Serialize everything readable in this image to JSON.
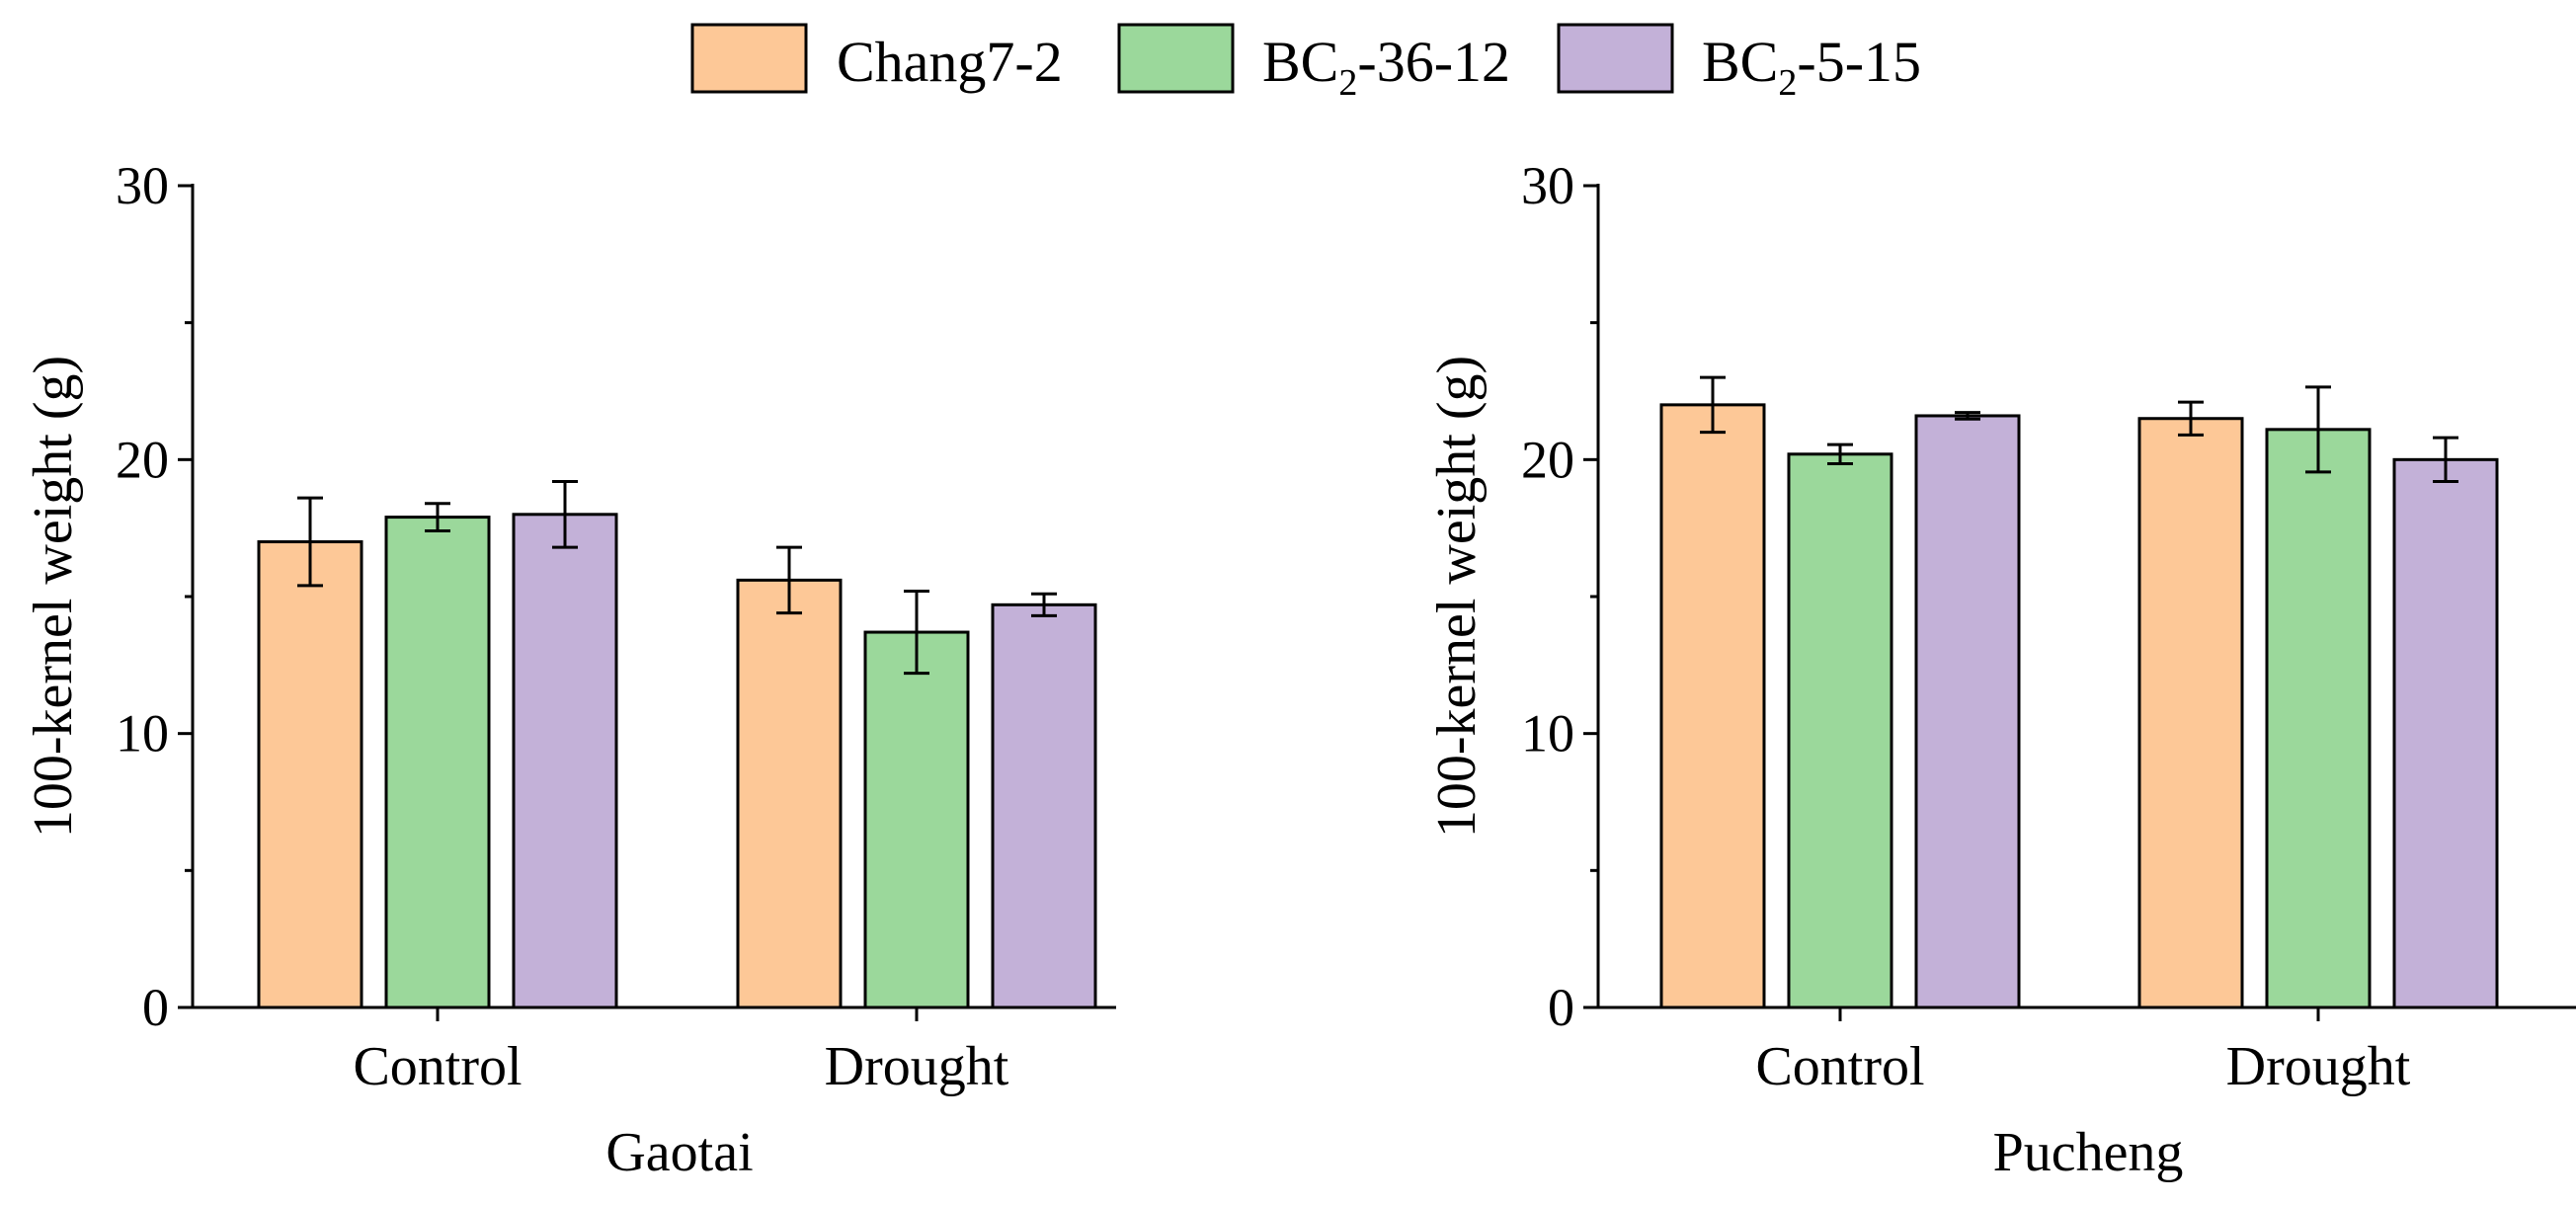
{
  "legend": {
    "items": [
      {
        "series": 0,
        "label": "Chang7-2"
      },
      {
        "series": 1,
        "label": "BC",
        "sub": "2",
        "rest": "-36-12"
      },
      {
        "series": 2,
        "label": "BC",
        "sub": "2",
        "rest": "-5-15"
      }
    ]
  },
  "chart_data": [
    {
      "type": "bar",
      "title": "Gaotai",
      "ylabel": "100-kernel weight (g)",
      "xlabel": "",
      "ylim": [
        0,
        30
      ],
      "yticks": [
        0,
        10,
        20,
        30
      ],
      "categories": [
        "Control",
        "Drought"
      ],
      "series": [
        {
          "name": "Chang7-2",
          "color": "#FDC897",
          "values": [
            17.0,
            15.6
          ],
          "errors": [
            1.6,
            1.2
          ]
        },
        {
          "name": "BC2-36-12",
          "color": "#9BD89B",
          "values": [
            17.9,
            13.7
          ],
          "errors": [
            0.5,
            1.5
          ]
        },
        {
          "name": "BC2-5-15",
          "color": "#C3B1D8",
          "values": [
            18.0,
            14.7
          ],
          "errors": [
            1.2,
            0.4
          ]
        }
      ]
    },
    {
      "type": "bar",
      "title": "Pucheng",
      "ylabel": "100-kernel weight (g)",
      "xlabel": "",
      "ylim": [
        0,
        30
      ],
      "yticks": [
        0,
        10,
        20,
        30
      ],
      "categories": [
        "Control",
        "Drought"
      ],
      "series": [
        {
          "name": "Chang7-2",
          "color": "#FDC897",
          "values": [
            22.0,
            21.5
          ],
          "errors": [
            1.0,
            0.6
          ]
        },
        {
          "name": "BC2-36-12",
          "color": "#9BD89B",
          "values": [
            20.2,
            21.1
          ],
          "errors": [
            0.35,
            1.55
          ]
        },
        {
          "name": "BC2-5-15",
          "color": "#C3B1D8",
          "values": [
            21.6,
            20.0
          ],
          "errors": [
            0.12,
            0.8
          ]
        }
      ]
    }
  ]
}
